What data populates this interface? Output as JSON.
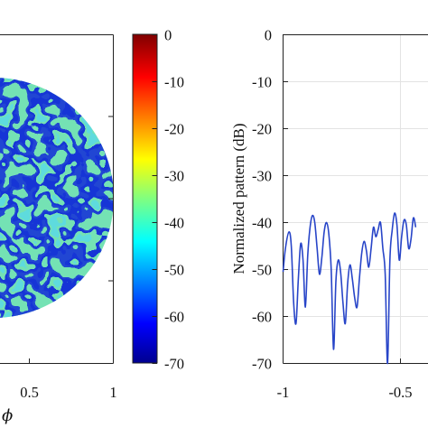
{
  "chart_data": [
    {
      "type": "heatmap",
      "xlabel": "ϕ",
      "x_ticks": [
        "0.5",
        "1"
      ],
      "x_visible_range": [
        -0.08,
        1.0
      ],
      "region_shape": "disc cropped at left edge of image",
      "colorbar": {
        "ticks": [
          "0",
          "-10",
          "-20",
          "-30",
          "-40",
          "-50",
          "-60",
          "-70"
        ],
        "range": [
          -70,
          0
        ],
        "colormap": "jet"
      },
      "dominant_level_db": -42,
      "minimum_level_db": -70
    },
    {
      "type": "line",
      "ylabel": "Normalized pattern (dB)",
      "y_ticks": [
        "0",
        "-10",
        "-20",
        "-30",
        "-40",
        "-50",
        "-60",
        "-70"
      ],
      "ylim": [
        -70,
        0
      ],
      "x_ticks": [
        "-1",
        "-0.5"
      ],
      "x_visible_range": [
        -1.0,
        -0.43
      ],
      "grid": true,
      "series": [
        {
          "color": "#2845c8",
          "x": [
            -1.0,
            -0.99,
            -0.975,
            -0.965,
            -0.955,
            -0.945,
            -0.935,
            -0.925,
            -0.915,
            -0.905,
            -0.895,
            -0.885,
            -0.875,
            -0.865,
            -0.855,
            -0.845,
            -0.835,
            -0.825,
            -0.815,
            -0.805,
            -0.795,
            -0.785,
            -0.775,
            -0.765,
            -0.755,
            -0.745,
            -0.735,
            -0.725,
            -0.715,
            -0.705,
            -0.695,
            -0.685,
            -0.675,
            -0.665,
            -0.655,
            -0.645,
            -0.635,
            -0.625,
            -0.615,
            -0.605,
            -0.595,
            -0.585,
            -0.575,
            -0.565,
            -0.555,
            -0.545,
            -0.535,
            -0.525,
            -0.515,
            -0.505,
            -0.495,
            -0.485,
            -0.475,
            -0.465,
            -0.455,
            -0.445,
            -0.435
          ],
          "y": [
            -50.5,
            -45.5,
            -42.0,
            -45.0,
            -57.0,
            -61.5,
            -52.0,
            -44.5,
            -48.0,
            -58.0,
            -47.0,
            -41.0,
            -38.5,
            -40.0,
            -45.5,
            -51.0,
            -47.5,
            -42.0,
            -40.0,
            -42.5,
            -50.0,
            -67.0,
            -52.5,
            -48.0,
            -50.5,
            -57.0,
            -61.5,
            -53.0,
            -49.0,
            -52.0,
            -56.0,
            -58.0,
            -52.0,
            -46.5,
            -44.0,
            -46.0,
            -49.5,
            -45.5,
            -41.0,
            -43.0,
            -41.5,
            -40.0,
            -45.5,
            -51.0,
            -70.0,
            -48.0,
            -41.5,
            -38.0,
            -40.5,
            -48.0,
            -43.0,
            -39.5,
            -40.5,
            -45.5,
            -43.5,
            -39.0,
            -41.0
          ]
        }
      ]
    }
  ]
}
